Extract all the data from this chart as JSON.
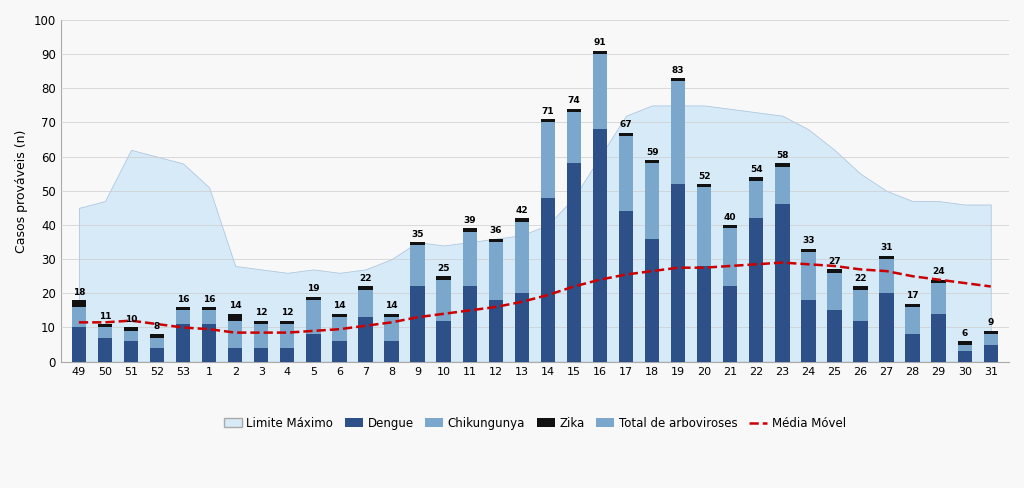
{
  "categories": [
    "49",
    "50",
    "51",
    "52",
    "53",
    "1",
    "2",
    "3",
    "4",
    "5",
    "6",
    "7",
    "8",
    "9",
    "10",
    "11",
    "12",
    "13",
    "14",
    "15",
    "16",
    "17",
    "18",
    "19",
    "20",
    "21",
    "22",
    "23",
    "24",
    "25",
    "26",
    "27",
    "28",
    "29",
    "30",
    "31"
  ],
  "total_arboviroses": [
    18,
    11,
    10,
    8,
    16,
    16,
    14,
    12,
    12,
    19,
    14,
    22,
    14,
    35,
    25,
    39,
    36,
    42,
    71,
    74,
    91,
    67,
    59,
    83,
    52,
    40,
    54,
    58,
    33,
    27,
    22,
    31,
    17,
    24,
    6,
    9
  ],
  "dengue": [
    10,
    7,
    6,
    4,
    11,
    11,
    4,
    4,
    4,
    8,
    6,
    13,
    6,
    22,
    12,
    22,
    18,
    20,
    48,
    58,
    68,
    44,
    36,
    52,
    28,
    22,
    42,
    46,
    18,
    15,
    12,
    20,
    8,
    14,
    3,
    5
  ],
  "chikungunya": [
    6,
    3,
    3,
    3,
    4,
    4,
    8,
    7,
    7,
    10,
    7,
    8,
    7,
    12,
    12,
    16,
    17,
    21,
    22,
    15,
    22,
    22,
    22,
    30,
    23,
    17,
    11,
    11,
    14,
    11,
    9,
    10,
    8,
    9,
    2,
    3
  ],
  "zika": [
    2,
    1,
    1,
    1,
    1,
    1,
    2,
    1,
    1,
    1,
    1,
    1,
    1,
    1,
    1,
    1,
    1,
    1,
    1,
    1,
    1,
    1,
    1,
    1,
    1,
    1,
    1,
    1,
    1,
    1,
    1,
    1,
    1,
    1,
    1,
    1
  ],
  "limite_maximo": [
    45,
    47,
    62,
    60,
    58,
    51,
    28,
    27,
    26,
    27,
    26,
    27,
    30,
    35,
    34,
    35,
    36,
    37,
    40,
    48,
    60,
    72,
    75,
    75,
    75,
    74,
    73,
    72,
    68,
    62,
    55,
    50,
    47,
    47,
    46,
    46
  ],
  "media_movel": [
    11.5,
    11.5,
    12,
    11,
    10,
    9.5,
    8.5,
    8.5,
    8.5,
    9,
    9.5,
    10.5,
    11.5,
    13,
    14,
    15,
    16,
    17.5,
    19.5,
    22,
    24,
    25.5,
    26.5,
    27.5,
    27.5,
    28,
    28.5,
    29,
    28.5,
    28,
    27,
    26.5,
    25,
    24,
    23,
    22
  ],
  "ylabel": "Casos prováveis (n)",
  "ylim": [
    0,
    100
  ],
  "yticks": [
    0,
    10,
    20,
    30,
    40,
    50,
    60,
    70,
    80,
    90,
    100
  ],
  "color_dengue": "#2e5088",
  "color_chikungunya": "#7ba7cc",
  "color_zika": "#111111",
  "color_total": "#7ba7cc",
  "color_limite": "#d6eaf8",
  "color_media": "#cc0000",
  "bg_color": "#f8f8f8",
  "legend_labels": [
    "Limite Máximo",
    "Dengue",
    "Chikungunya",
    "Zika",
    "Total de arboviroses",
    "Média Móvel"
  ]
}
